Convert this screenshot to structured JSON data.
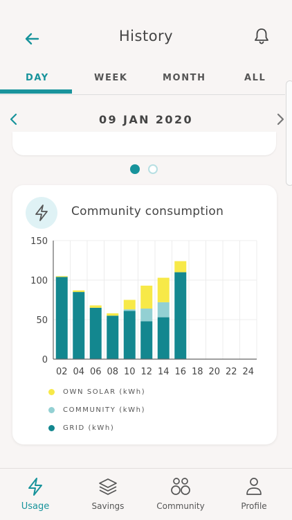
{
  "header": {
    "title": "History"
  },
  "tabs": [
    {
      "label": "DAY",
      "active": true
    },
    {
      "label": "WEEK",
      "active": false
    },
    {
      "label": "MONTH",
      "active": false
    },
    {
      "label": "ALL",
      "active": false
    }
  ],
  "date": {
    "label": "09 JAN 2020"
  },
  "pager": {
    "pages": 2,
    "current": 1
  },
  "card": {
    "title": "Community consumption",
    "icon": "lightning-icon",
    "icon_bg": "#dff2f5"
  },
  "chart_data": {
    "type": "bar",
    "stacked": true,
    "categories": [
      "02",
      "04",
      "06",
      "08",
      "10",
      "12",
      "14",
      "16",
      "18",
      "20",
      "22",
      "24"
    ],
    "series": [
      {
        "name": "GRID (kWh)",
        "color": "#13878f",
        "values": [
          104,
          85,
          65,
          55,
          61,
          48,
          53,
          110,
          0,
          0,
          0,
          0
        ]
      },
      {
        "name": "COMMUNITY (kWh)",
        "color": "#93d0d3",
        "values": [
          0,
          0,
          0,
          0,
          2,
          16,
          19,
          0,
          0,
          0,
          0,
          0
        ]
      },
      {
        "name": "OWN SOLAR (kWh)",
        "color": "#f7e948",
        "values": [
          1,
          2,
          3,
          3,
          12,
          29,
          31,
          14,
          0,
          0,
          0,
          0
        ]
      }
    ],
    "yticks": [
      0,
      50,
      100,
      150
    ],
    "ylim": [
      0,
      150
    ],
    "grid": true,
    "legend_position": "bottom-left"
  },
  "legend": [
    {
      "label": "OWN SOLAR (kWh)",
      "color": "#f7e948"
    },
    {
      "label": "COMMUNITY (kWh)",
      "color": "#93d0d3"
    },
    {
      "label": "GRID (kWh)",
      "color": "#13878f"
    }
  ],
  "nav": [
    {
      "label": "Usage",
      "icon": "lightning-icon",
      "active": true
    },
    {
      "label": "Savings",
      "icon": "layers-icon",
      "active": false
    },
    {
      "label": "Community",
      "icon": "community-icon",
      "active": false
    },
    {
      "label": "Profile",
      "icon": "person-icon",
      "active": false
    }
  ],
  "colors": {
    "accent": "#17939b",
    "background": "#f8f5f4"
  }
}
